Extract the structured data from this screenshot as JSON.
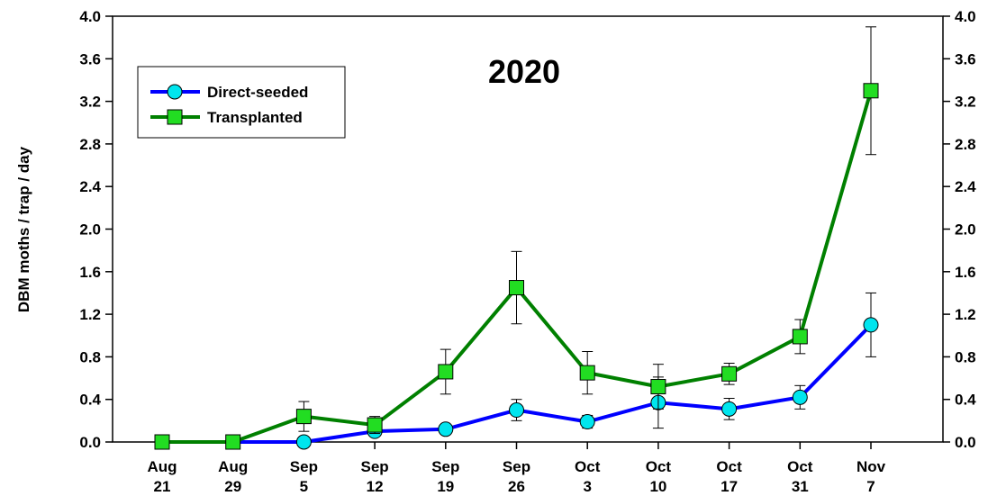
{
  "chart_data": {
    "type": "line",
    "title": "2020",
    "xlabel": "",
    "ylabel": "DBM moths / trap / day",
    "ylim": [
      0,
      4.0
    ],
    "yticks": [
      "0.0",
      "0.4",
      "0.8",
      "1.2",
      "1.6",
      "2.0",
      "2.4",
      "2.8",
      "3.2",
      "3.6",
      "4.0"
    ],
    "right_axis_mirrored": true,
    "grid": false,
    "legend_position": "top-left",
    "categories": [
      [
        "Aug",
        "21"
      ],
      [
        "Aug",
        "29"
      ],
      [
        "Sep",
        "5"
      ],
      [
        "Sep",
        "12"
      ],
      [
        "Sep",
        "19"
      ],
      [
        "Sep",
        "26"
      ],
      [
        "Oct",
        "3"
      ],
      [
        "Oct",
        "10"
      ],
      [
        "Oct",
        "17"
      ],
      [
        "Oct",
        "31"
      ],
      [
        "Nov",
        "7"
      ]
    ],
    "series": [
      {
        "name": "Direct-seeded",
        "line_color": "#0000ff",
        "marker": "circle",
        "marker_color": "#00e5ee",
        "values": [
          0.0,
          0.0,
          0.0,
          0.1,
          0.12,
          0.3,
          0.19,
          0.37,
          0.31,
          0.42,
          1.1
        ],
        "error": [
          0,
          0,
          0,
          0.04,
          0.03,
          0.1,
          0.06,
          0.24,
          0.1,
          0.11,
          0.3
        ]
      },
      {
        "name": "Transplanted",
        "line_color": "#008000",
        "marker": "square",
        "marker_color": "#22dd22",
        "values": [
          0.0,
          0.0,
          0.24,
          0.16,
          0.66,
          1.45,
          0.65,
          0.52,
          0.64,
          0.99,
          3.3
        ],
        "error": [
          0,
          0,
          0.14,
          0.08,
          0.21,
          0.34,
          0.2,
          0.21,
          0.1,
          0.16,
          0.6
        ]
      }
    ]
  }
}
